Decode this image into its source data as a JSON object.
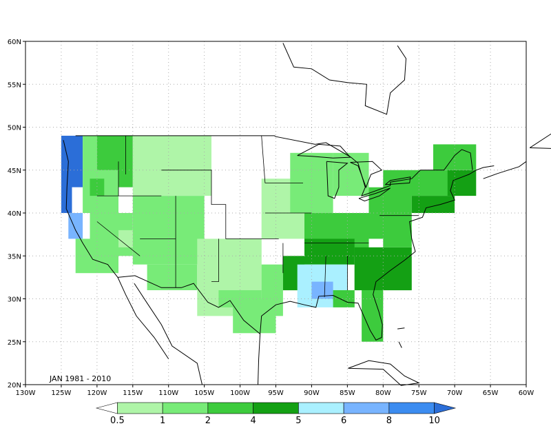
{
  "period_label": "JAN 1981 - 2010",
  "map": {
    "lon_range": [
      -130,
      -60
    ],
    "lat_range": [
      20,
      60
    ],
    "x_ticks": [
      "130W",
      "125W",
      "120W",
      "115W",
      "110W",
      "105W",
      "100W",
      "95W",
      "90W",
      "85W",
      "80W",
      "75W",
      "70W",
      "65W",
      "60W"
    ],
    "y_ticks": [
      "20N",
      "25N",
      "30N",
      "35N",
      "40N",
      "45N",
      "50N",
      "55N",
      "60N"
    ],
    "grid": true
  },
  "colorbar": {
    "labels": [
      "0.5",
      "1",
      "2",
      "4",
      "5",
      "6",
      "8",
      "10"
    ],
    "colors": [
      "#ffffff",
      "#aff5a8",
      "#78eb78",
      "#3dcb3d",
      "#14a014",
      "#aaf0ff",
      "#78b4ff",
      "#3c8cf0",
      "#2b6ed8"
    ]
  },
  "chart_data": {
    "type": "heatmap",
    "variable_units": "",
    "legend_position": "bottom",
    "value_classes": [
      "<0.5",
      "0.5-1",
      "1-2",
      "2-4",
      "4-5",
      "5-6",
      "6-8",
      "8-10",
      ">10"
    ],
    "regions": [
      {
        "region": "Pacific Northwest coast",
        "class": ">10"
      },
      {
        "region": "Northern California coast",
        "class": "6-8"
      },
      {
        "region": "Northern Rockies",
        "class": "2-4"
      },
      {
        "region": "Idaho / Montana",
        "class": "0.5-1"
      },
      {
        "region": "Northern Great Plains",
        "class": "<0.5"
      },
      {
        "region": "Central Plains / Colorado",
        "class": "0.5-1"
      },
      {
        "region": "Desert Southwest",
        "class": "1-2"
      },
      {
        "region": "Texas",
        "class": "0.5-1"
      },
      {
        "region": "Upper Midwest",
        "class": "1-2"
      },
      {
        "region": "Ohio Valley",
        "class": "2-4"
      },
      {
        "region": "Tennessee Valley",
        "class": "4-5"
      },
      {
        "region": "Mississippi / Alabama",
        "class": "5-6"
      },
      {
        "region": "Central Gulf Coast",
        "class": "6-8"
      },
      {
        "region": "Southeast Atlantic",
        "class": "4-5"
      },
      {
        "region": "Florida",
        "class": "2-4"
      },
      {
        "region": "Northeast",
        "class": "2-4"
      },
      {
        "region": "Maine",
        "class": "4-5"
      }
    ]
  }
}
